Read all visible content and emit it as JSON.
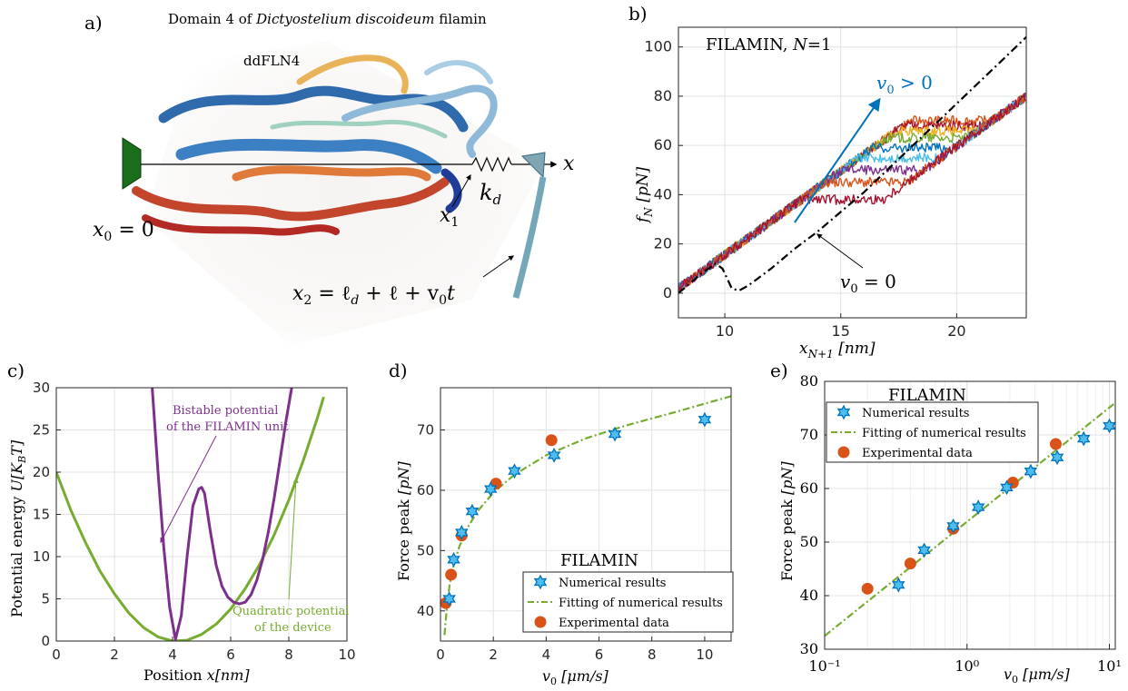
{
  "panel_a": {
    "label": "a)",
    "title_prefix": "Domain 4 of ",
    "title_italic": "Dictyostelium discoideum",
    "title_suffix": " filamin",
    "subtitle": "ddFLN4",
    "x_arrow_label": "x",
    "kd_k": "k",
    "kd_sub": "d",
    "x1": "x",
    "x1_sub": "1",
    "x0": "x",
    "x0_sub": "0",
    "x0_eq": " = 0",
    "x2": "x",
    "x2_sub": "2",
    "x2_eq": " = ℓ",
    "x2_eq_sub": "d",
    "x2_eq_rest": " + ℓ + v",
    "x2_eq_sub2": "0",
    "x2_eq_t": "t"
  },
  "chart_data": [
    {
      "panel": "b)",
      "type": "line",
      "title": "FILAMIN, N=1",
      "title_plain": "FILAMIN, ",
      "title_var": "N",
      "title_eq": "=1",
      "xlabel": "x",
      "xlabel_sub": "N+1",
      "xlabel_unit": " [nm]",
      "ylabel": "f",
      "ylabel_sub": "N",
      "ylabel_unit": " [pN]",
      "xlim": [
        8,
        23
      ],
      "ylim": [
        -10,
        108
      ],
      "xticks": [
        10,
        15,
        20
      ],
      "yticks": [
        0,
        20,
        40,
        60,
        80,
        100
      ],
      "grid": true,
      "annotation_v0_pos": "v",
      "annotation_v0_pos_sub": "0",
      "annotation_v0_pos_rel": " > 0",
      "annotation_v0_zero": "v",
      "annotation_v0_zero_sub": "0",
      "annotation_v0_zero_rel": " = 0",
      "series": [
        {
          "peak_x": 14.0,
          "plateau": 38,
          "color": "#a2142f"
        },
        {
          "peak_x": 14.5,
          "plateau": 45,
          "color": "#d95319"
        },
        {
          "peak_x": 15.0,
          "plateau": 50,
          "color": "#7e2f8e"
        },
        {
          "peak_x": 15.5,
          "plateau": 55,
          "color": "#4dbeee"
        },
        {
          "peak_x": 16.0,
          "plateau": 59,
          "color": "#0072bd"
        },
        {
          "peak_x": 16.5,
          "plateau": 63,
          "color": "#77ac30"
        },
        {
          "peak_x": 17.0,
          "plateau": 66,
          "color": "#edb120"
        },
        {
          "peak_x": 17.5,
          "plateau": 68,
          "color": "#a2142f"
        },
        {
          "peak_x": 18.0,
          "plateau": 70,
          "color": "#d95319"
        }
      ],
      "zero_velocity_curve": {
        "x": [
          8.0,
          9.0,
          9.6,
          9.9,
          10.3,
          10.6,
          11.0,
          12.0,
          13.0,
          14.0,
          15.0,
          16.0,
          17.0,
          18.0,
          19.0,
          20.0,
          21.0,
          22.0,
          23.0
        ],
        "y": [
          0,
          8,
          12,
          10,
          2,
          1,
          3,
          10,
          18,
          25,
          33,
          41,
          50,
          59,
          68,
          77,
          86,
          95,
          104
        ]
      }
    },
    {
      "panel": "c)",
      "type": "line",
      "xlabel": "Position ",
      "xlabel_var": "x",
      "xlabel_unit": "[nm]",
      "ylabel": "Potential energy ",
      "ylabel_var": "U",
      "ylabel_unit": "[K",
      "ylabel_unit_sub": "B",
      "ylabel_unit_end": "T]",
      "xlim": [
        0,
        10
      ],
      "ylim": [
        0,
        30
      ],
      "xticks": [
        0,
        2,
        4,
        6,
        8,
        10
      ],
      "yticks": [
        0,
        5,
        10,
        15,
        20,
        25,
        30
      ],
      "grid": true,
      "annotation_bistable_1": "Bistable potential",
      "annotation_bistable_2": "of the FILAMIN unit",
      "annotation_quad_1": "Quadratic potential",
      "annotation_quad_2": "of the device",
      "series": [
        {
          "color": "#7e2f8e",
          "x": [
            3.3,
            3.5,
            3.7,
            3.9,
            4.1,
            4.3,
            4.5,
            4.7,
            4.9,
            5.0,
            5.1,
            5.3,
            5.5,
            5.7,
            5.9,
            6.1,
            6.3,
            6.5,
            6.7,
            6.9,
            7.1,
            7.3,
            7.5,
            7.7,
            7.9,
            8.1,
            8.3
          ],
          "y": [
            30,
            20,
            11,
            4,
            0.2,
            3,
            10,
            16,
            18,
            18.2,
            17.5,
            13,
            9,
            6.5,
            5.2,
            4.6,
            4.4,
            4.6,
            5.5,
            7.2,
            9.7,
            13,
            17,
            21.5,
            26,
            30,
            33
          ]
        },
        {
          "color": "#77ac30",
          "x": [
            0,
            0.5,
            1,
            1.5,
            2,
            2.5,
            3,
            3.5,
            4,
            4.5,
            5,
            5.5,
            6,
            6.5,
            7,
            7.5,
            8,
            8.5,
            9,
            9.2
          ],
          "y": [
            20,
            15.5,
            11.7,
            8.3,
            5.6,
            3.3,
            1.6,
            0.5,
            0,
            0.1,
            0.8,
            2.0,
            3.8,
            6.2,
            9.1,
            12.6,
            16.7,
            21.4,
            26.6,
            28.9
          ]
        }
      ]
    },
    {
      "panel": "d)",
      "type": "scatter",
      "title": "FILAMIN",
      "xlabel": "v",
      "xlabel_sub": "0",
      "xlabel_unit": " [μm/s]",
      "ylabel": "Force peak ",
      "ylabel_unit": "[pN]",
      "xlim": [
        0,
        11
      ],
      "ylim": [
        35,
        77
      ],
      "xticks": [
        0,
        2,
        4,
        6,
        8,
        10
      ],
      "yticks": [
        40,
        50,
        60,
        70
      ],
      "grid": true,
      "legend": [
        "Numerical results",
        "Fitting of numerical results",
        "Experimental data"
      ],
      "numerical": {
        "x": [
          0.33,
          0.5,
          0.8,
          1.2,
          1.9,
          2.8,
          4.3,
          6.6,
          10
        ],
        "y": [
          42,
          48.5,
          53,
          56.5,
          60.2,
          63.2,
          65.8,
          69.3,
          71.7
        ]
      },
      "fit": {
        "x": [
          0.15,
          0.25,
          0.35,
          0.5,
          0.7,
          1.0,
          1.4,
          2.0,
          2.8,
          4.0,
          5.5,
          7.0,
          9.0,
          11.0
        ],
        "y": [
          36,
          41,
          44.5,
          47.5,
          50.5,
          53.6,
          56.5,
          59.6,
          62.6,
          65.8,
          68.6,
          70.7,
          73.1,
          75.6
        ]
      },
      "experimental": {
        "x": [
          0.2,
          0.4,
          0.8,
          2.1,
          4.2
        ],
        "y": [
          41.3,
          46,
          52.5,
          61.1,
          68.3
        ]
      }
    },
    {
      "panel": "e)",
      "type": "scatter",
      "title": "FILAMIN",
      "xlabel": "v",
      "xlabel_sub": "0",
      "xlabel_unit": " [μm/s]",
      "ylabel": "Force peak ",
      "ylabel_unit": "[pN]",
      "xscale": "log",
      "xlim": [
        0.1,
        11
      ],
      "ylim": [
        30,
        80
      ],
      "xticks": [
        "10⁻¹",
        "10⁰",
        "10¹"
      ],
      "yticks": [
        30,
        40,
        50,
        60,
        70,
        80
      ],
      "grid": true,
      "legend": [
        "Numerical results",
        "Fitting of numerical results",
        "Experimental data"
      ],
      "numerical": {
        "x": [
          0.33,
          0.5,
          0.8,
          1.2,
          1.9,
          2.8,
          4.3,
          6.6,
          10
        ],
        "y": [
          42,
          48.5,
          53,
          56.5,
          60.2,
          63.2,
          65.8,
          69.3,
          71.7
        ]
      },
      "fit": {
        "x": [
          0.1,
          11
        ],
        "y": [
          32.5,
          76
        ]
      },
      "experimental": {
        "x": [
          0.2,
          0.4,
          0.8,
          2.1,
          4.2
        ],
        "y": [
          41.3,
          46,
          52.5,
          61.1,
          68.3
        ]
      }
    }
  ]
}
